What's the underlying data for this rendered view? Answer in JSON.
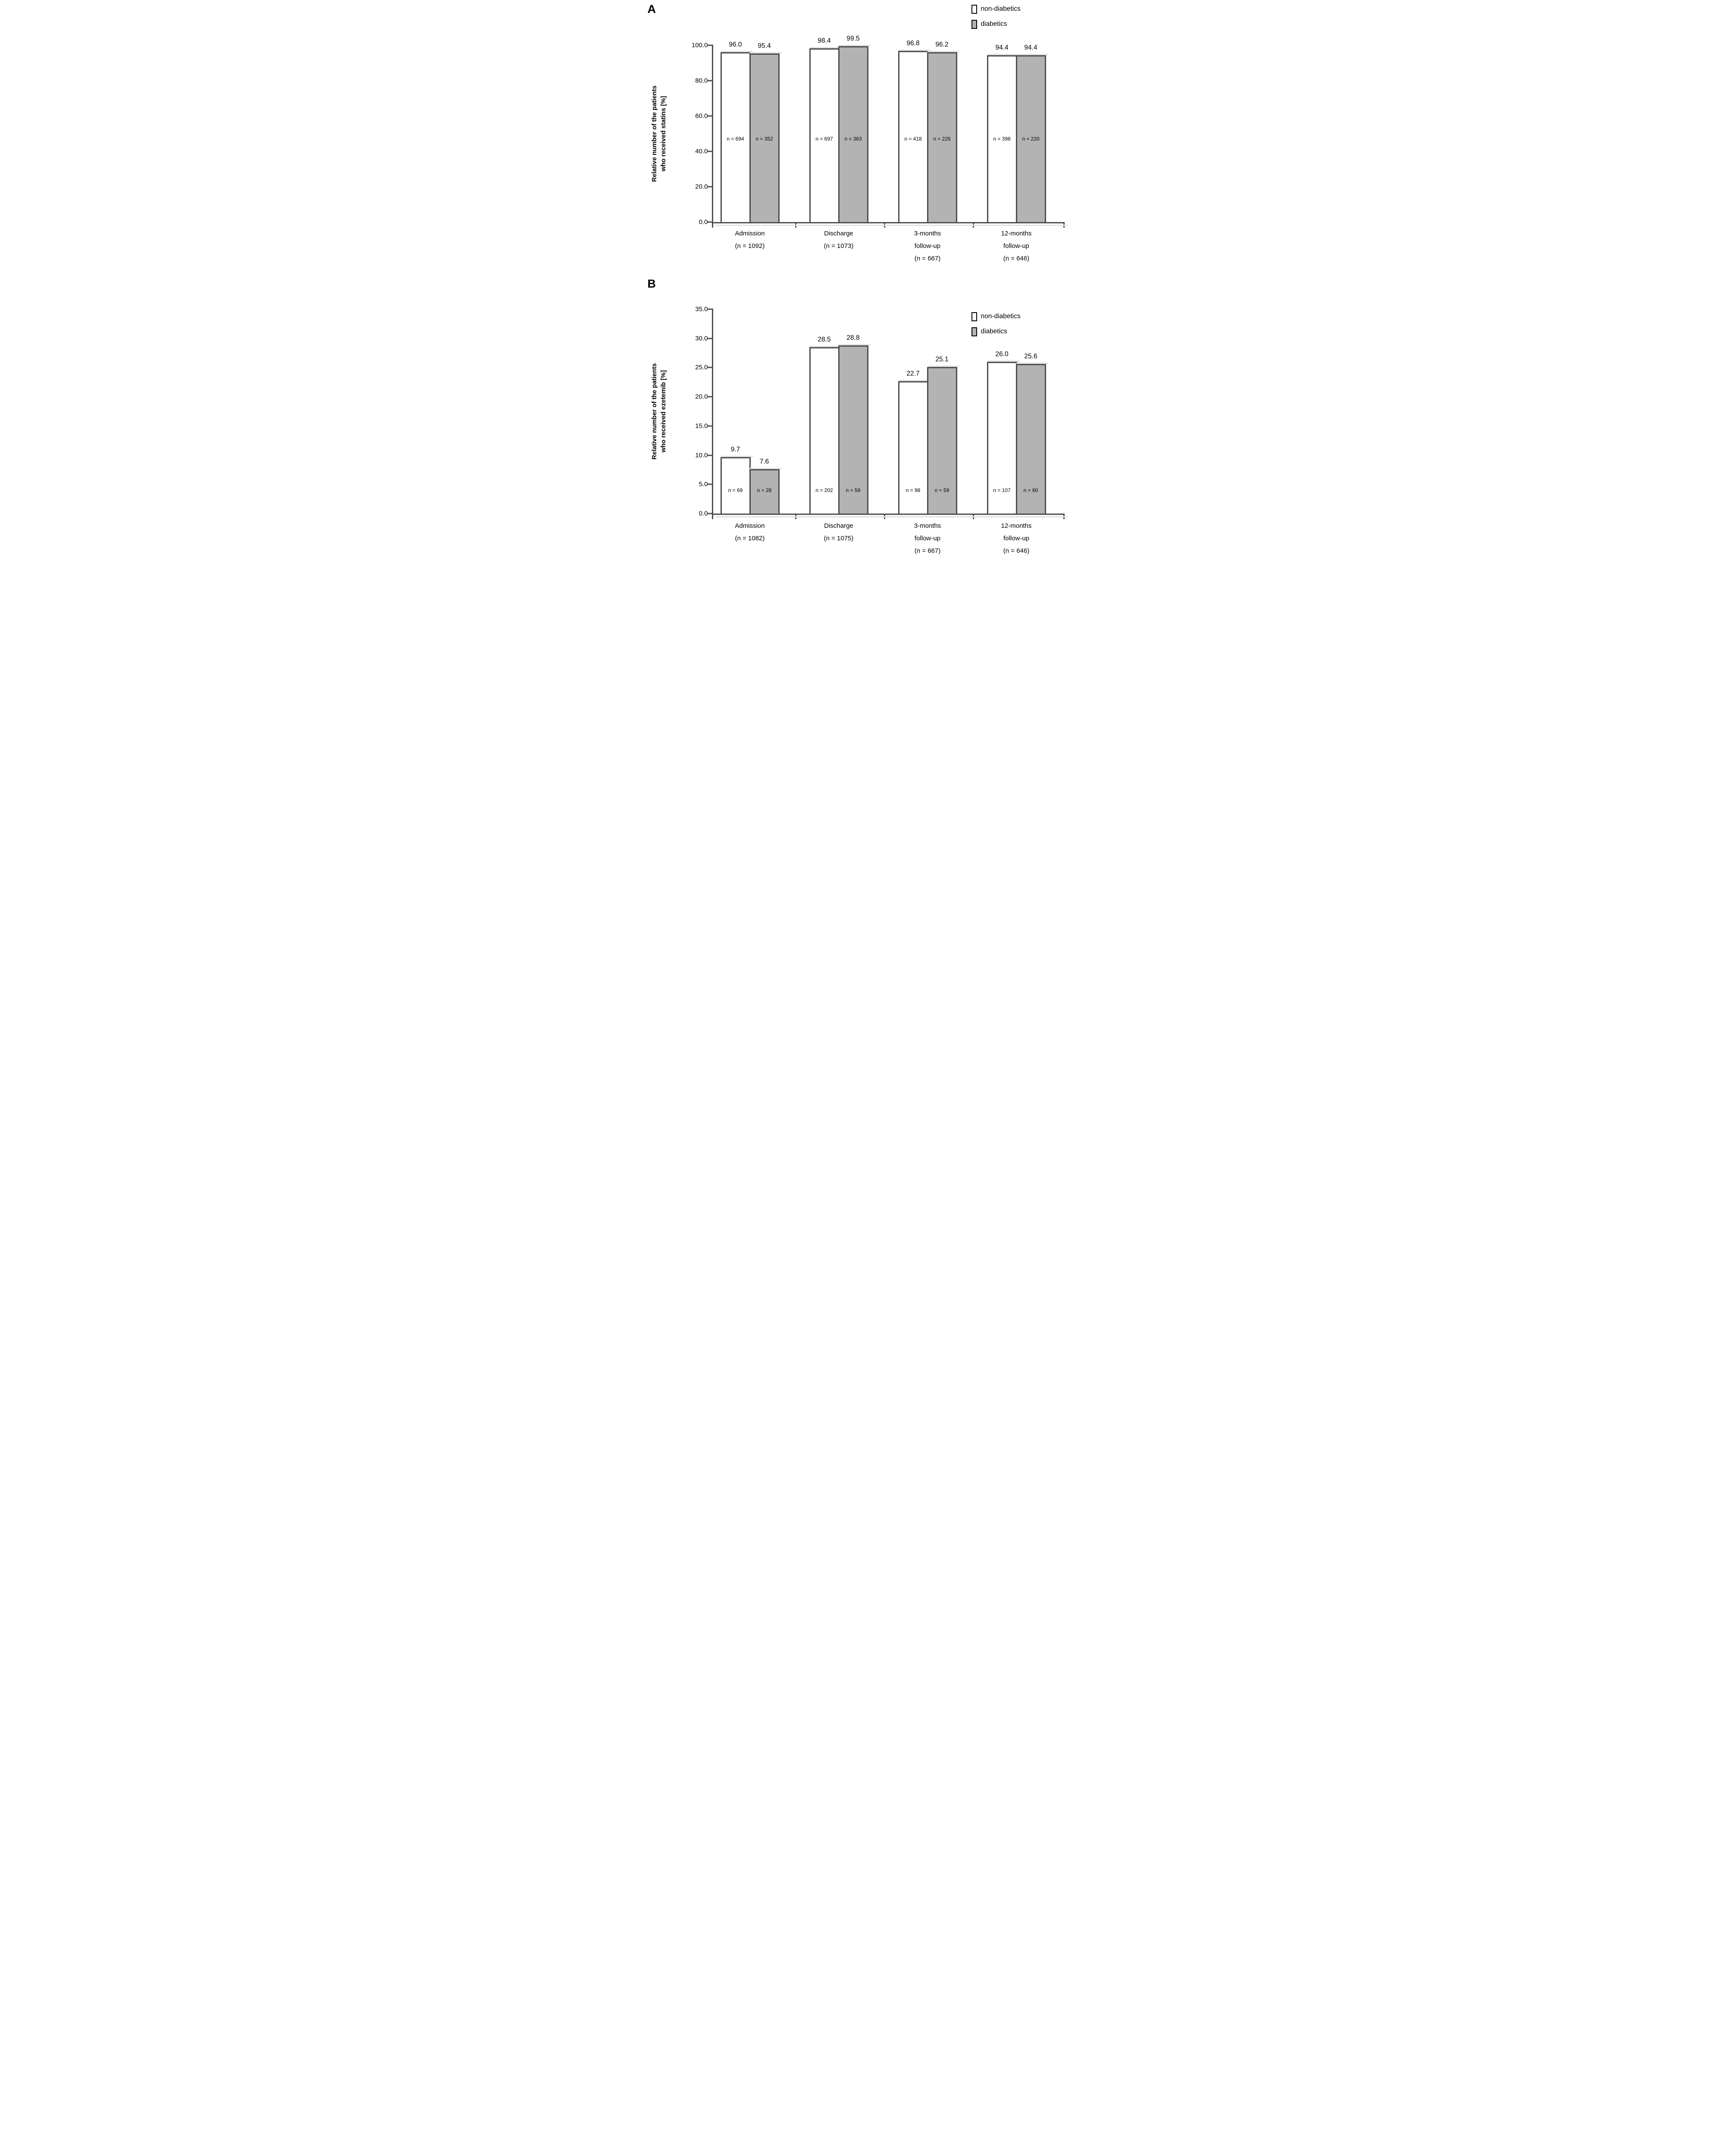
{
  "colors": {
    "non_diabetics_fill": "#ffffff",
    "diabetics_fill": "#b3b3b3",
    "bar_border": "#4d4d4d",
    "axis": "#4d4d4d",
    "shadow": "#e0e0e0",
    "text": "#000000"
  },
  "legend": {
    "items": [
      {
        "label": "non-diabetics"
      },
      {
        "label": "diabetics"
      }
    ]
  },
  "chart_data": [
    {
      "type": "bar",
      "panel_letter": "A",
      "title": "",
      "ylabel_lines": [
        "Relative number of the patients",
        "who received statins [%]"
      ],
      "ylabel": "Relative number of the patients who received statins [%]",
      "xlabel": "",
      "ylim": [
        0,
        100
      ],
      "ystep": 20,
      "ymax": 100,
      "grid": "off",
      "legend_position": "top-right",
      "yticks": [
        "100.0",
        "80.0",
        "60.0",
        "40.0",
        "20.0",
        "0.0"
      ],
      "series_names": [
        "non-diabetics",
        "diabetics"
      ],
      "categories": [
        "Admission (n = 1092)",
        "Discharge (n = 1073)",
        "3-months follow-up (n = 667)",
        "12-months follow-up (n = 646)"
      ],
      "groups": [
        {
          "xlabel_lines": [
            "Admission",
            "(n = 1092)",
            ""
          ],
          "bars": [
            {
              "series": "non-diabetics",
              "value": 96.0,
              "label": "96.0",
              "n": "n = 694"
            },
            {
              "series": "diabetics",
              "value": 95.4,
              "label": "95.4",
              "n": "n = 352"
            }
          ]
        },
        {
          "xlabel_lines": [
            "Discharge",
            "(n = 1073)",
            ""
          ],
          "bars": [
            {
              "series": "non-diabetics",
              "value": 98.4,
              "label": "98.4",
              "n": "n = 697"
            },
            {
              "series": "diabetics",
              "value": 99.5,
              "label": "99.5",
              "n": "n = 363"
            }
          ]
        },
        {
          "xlabel_lines": [
            "3-months",
            "follow-up",
            "(n = 667)"
          ],
          "bars": [
            {
              "series": "non-diabetics",
              "value": 96.8,
              "label": "96.8",
              "n": "n = 418"
            },
            {
              "series": "diabetics",
              "value": 96.2,
              "label": "96.2",
              "n": "n = 226"
            }
          ]
        },
        {
          "xlabel_lines": [
            "12-months",
            "follow-up",
            "(n = 646)"
          ],
          "bars": [
            {
              "series": "non-diabetics",
              "value": 94.4,
              "label": "94.4",
              "n": "n = 398"
            },
            {
              "series": "diabetics",
              "value": 94.4,
              "label": "94.4",
              "n": "n = 220"
            }
          ]
        }
      ]
    },
    {
      "type": "bar",
      "panel_letter": "B",
      "title": "",
      "ylabel_lines": [
        "Relative number of the patients",
        "who received ezetemib [%]"
      ],
      "ylabel": "Relative number of the patients who received ezetemib [%]",
      "xlabel": "",
      "ylim": [
        0,
        35
      ],
      "ystep": 5,
      "ymax": 35,
      "grid": "off",
      "legend_position": "top-right",
      "yticks": [
        "35.0",
        "30.0",
        "25.0",
        "20.0",
        "15.0",
        "10.0",
        "5.0",
        "0.0"
      ],
      "series_names": [
        "non-diabetics",
        "diabetics"
      ],
      "categories": [
        "Admission (n = 1082)",
        "Discharge (n = 1075)",
        "3-months follow-up (n = 667)",
        "12-months follow-up (n = 646)"
      ],
      "groups": [
        {
          "xlabel_lines": [
            "Admission",
            "(n = 1082)",
            ""
          ],
          "bars": [
            {
              "series": "non-diabetics",
              "value": 9.7,
              "label": "9.7",
              "n": "n = 69"
            },
            {
              "series": "diabetics",
              "value": 7.6,
              "label": "7.6",
              "n": "n = 28"
            }
          ]
        },
        {
          "xlabel_lines": [
            "Discharge",
            "(n = 1075)",
            ""
          ],
          "bars": [
            {
              "series": "non-diabetics",
              "value": 28.5,
              "label": "28.5",
              "n": "n = 202"
            },
            {
              "series": "diabetics",
              "value": 28.8,
              "label": "28.8",
              "n": "n = 59"
            }
          ]
        },
        {
          "xlabel_lines": [
            "3-months",
            "follow-up",
            "(n = 667)"
          ],
          "bars": [
            {
              "series": "non-diabetics",
              "value": 22.7,
              "label": "22.7",
              "n": "n = 98"
            },
            {
              "series": "diabetics",
              "value": 25.1,
              "label": "25.1",
              "n": "n = 59"
            }
          ]
        },
        {
          "xlabel_lines": [
            "12-months",
            "follow-up",
            "(n = 646)"
          ],
          "bars": [
            {
              "series": "non-diabetics",
              "value": 26.0,
              "label": "26.0",
              "n": "n = 107"
            },
            {
              "series": "diabetics",
              "value": 25.6,
              "label": "25.6",
              "n": "n = 60"
            }
          ]
        }
      ]
    }
  ]
}
